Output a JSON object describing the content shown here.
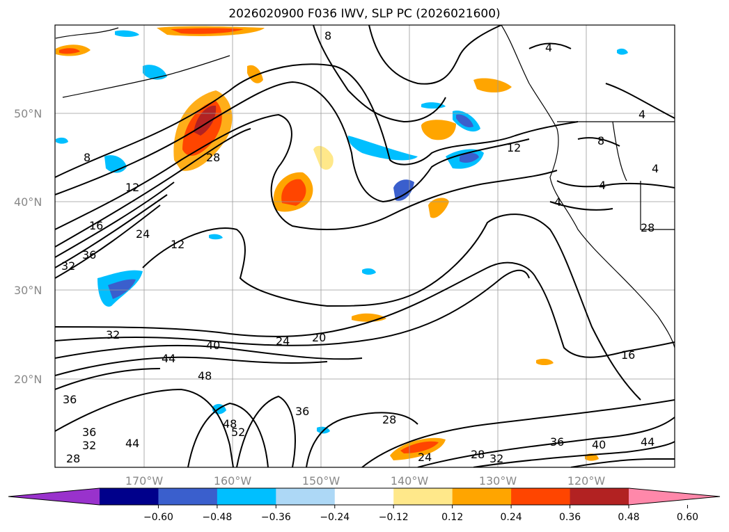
{
  "title": "2026020900 F036 IWV, SLP PC (2026021600)",
  "axes": {
    "lat_labels": [
      "50°N",
      "40°N",
      "30°N",
      "20°N"
    ],
    "lon_labels": [
      "170°W",
      "160°W",
      "150°W",
      "140°W",
      "130°W",
      "120°W"
    ]
  },
  "colorbar": {
    "ticks": [
      "−0.60",
      "−0.48",
      "−0.36",
      "−0.24",
      "−0.12",
      "0.12",
      "0.24",
      "0.36",
      "0.48",
      "0.60"
    ],
    "colors": [
      "#9932cc",
      "#00008b",
      "#3a5fcd",
      "#00bfff",
      "#add8f6",
      "#ffffff",
      "#ffe88a",
      "#ffa500",
      "#ff4500",
      "#b22222",
      "#ff88aa"
    ]
  },
  "contour_labels": [
    "8",
    "12",
    "16",
    "24",
    "28",
    "32",
    "36",
    "12",
    "8",
    "4",
    "4",
    "4",
    "4",
    "4",
    "8",
    "12",
    "28",
    "24",
    "20",
    "16",
    "32",
    "40",
    "44",
    "48",
    "36",
    "36",
    "32",
    "28",
    "44",
    "48",
    "52",
    "36",
    "28",
    "24",
    "28",
    "32",
    "36",
    "40",
    "44"
  ],
  "chart_data": {
    "type": "contour-map",
    "field_shaded": "IWV pattern correlation",
    "field_contoured": "SLP",
    "lon_range": [
      -180,
      -110
    ],
    "lat_range": [
      10,
      60
    ],
    "shading_levels": [
      -0.6,
      -0.48,
      -0.36,
      -0.24,
      -0.12,
      0.12,
      0.24,
      0.36,
      0.48,
      0.6
    ]
  }
}
